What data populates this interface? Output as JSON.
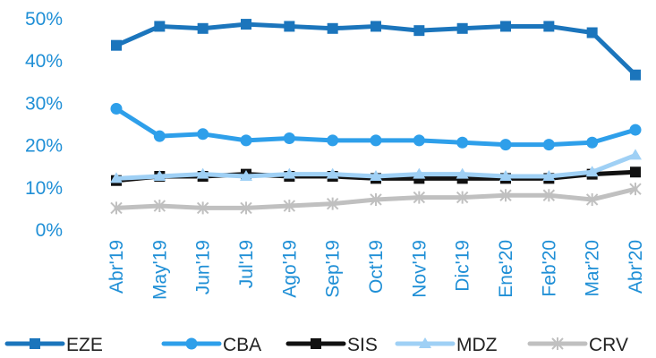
{
  "chart_data": {
    "type": "line",
    "title": "",
    "xlabel": "",
    "ylabel": "",
    "ylim": [
      0,
      50
    ],
    "grid": false,
    "legend_position": "bottom",
    "y_ticks": [
      "0%",
      "10%",
      "20%",
      "30%",
      "40%",
      "50%"
    ],
    "categories": [
      "Abr'19",
      "May'19",
      "Jun'19",
      "Jul'19",
      "Ago'19",
      "Sep'19",
      "Oct'19",
      "Nov'19",
      "Dic'19",
      "Ene'20",
      "Feb'20",
      "Mar'20",
      "Abr'20"
    ],
    "series": [
      {
        "name": "EZE",
        "color": "#1b75bc",
        "marker": "square",
        "values": [
          43.5,
          48,
          47.5,
          48.5,
          48,
          47.5,
          48,
          47,
          47.5,
          48,
          48,
          46.5,
          36.5
        ]
      },
      {
        "name": "CBA",
        "color": "#2e9fea",
        "marker": "circle",
        "values": [
          28.5,
          22,
          22.5,
          21,
          21.5,
          21,
          21,
          21,
          20.5,
          20,
          20,
          20.5,
          23.5
        ]
      },
      {
        "name": "SIS",
        "color": "#111111",
        "marker": "square",
        "values": [
          11.5,
          12.5,
          12.5,
          13,
          12.5,
          12.5,
          12,
          12,
          12,
          12,
          12,
          13,
          13.5
        ]
      },
      {
        "name": "MDZ",
        "color": "#9fd0f5",
        "marker": "triangle",
        "values": [
          12,
          12.5,
          13,
          12.5,
          13,
          13,
          12.5,
          13,
          13,
          12.5,
          12.5,
          13.5,
          17.5
        ]
      },
      {
        "name": "CRV",
        "color": "#c0c0c0",
        "marker": "x",
        "values": [
          5,
          5.5,
          5,
          5,
          5.5,
          6,
          7,
          7.5,
          7.5,
          8,
          8,
          7,
          9.5
        ]
      }
    ]
  }
}
